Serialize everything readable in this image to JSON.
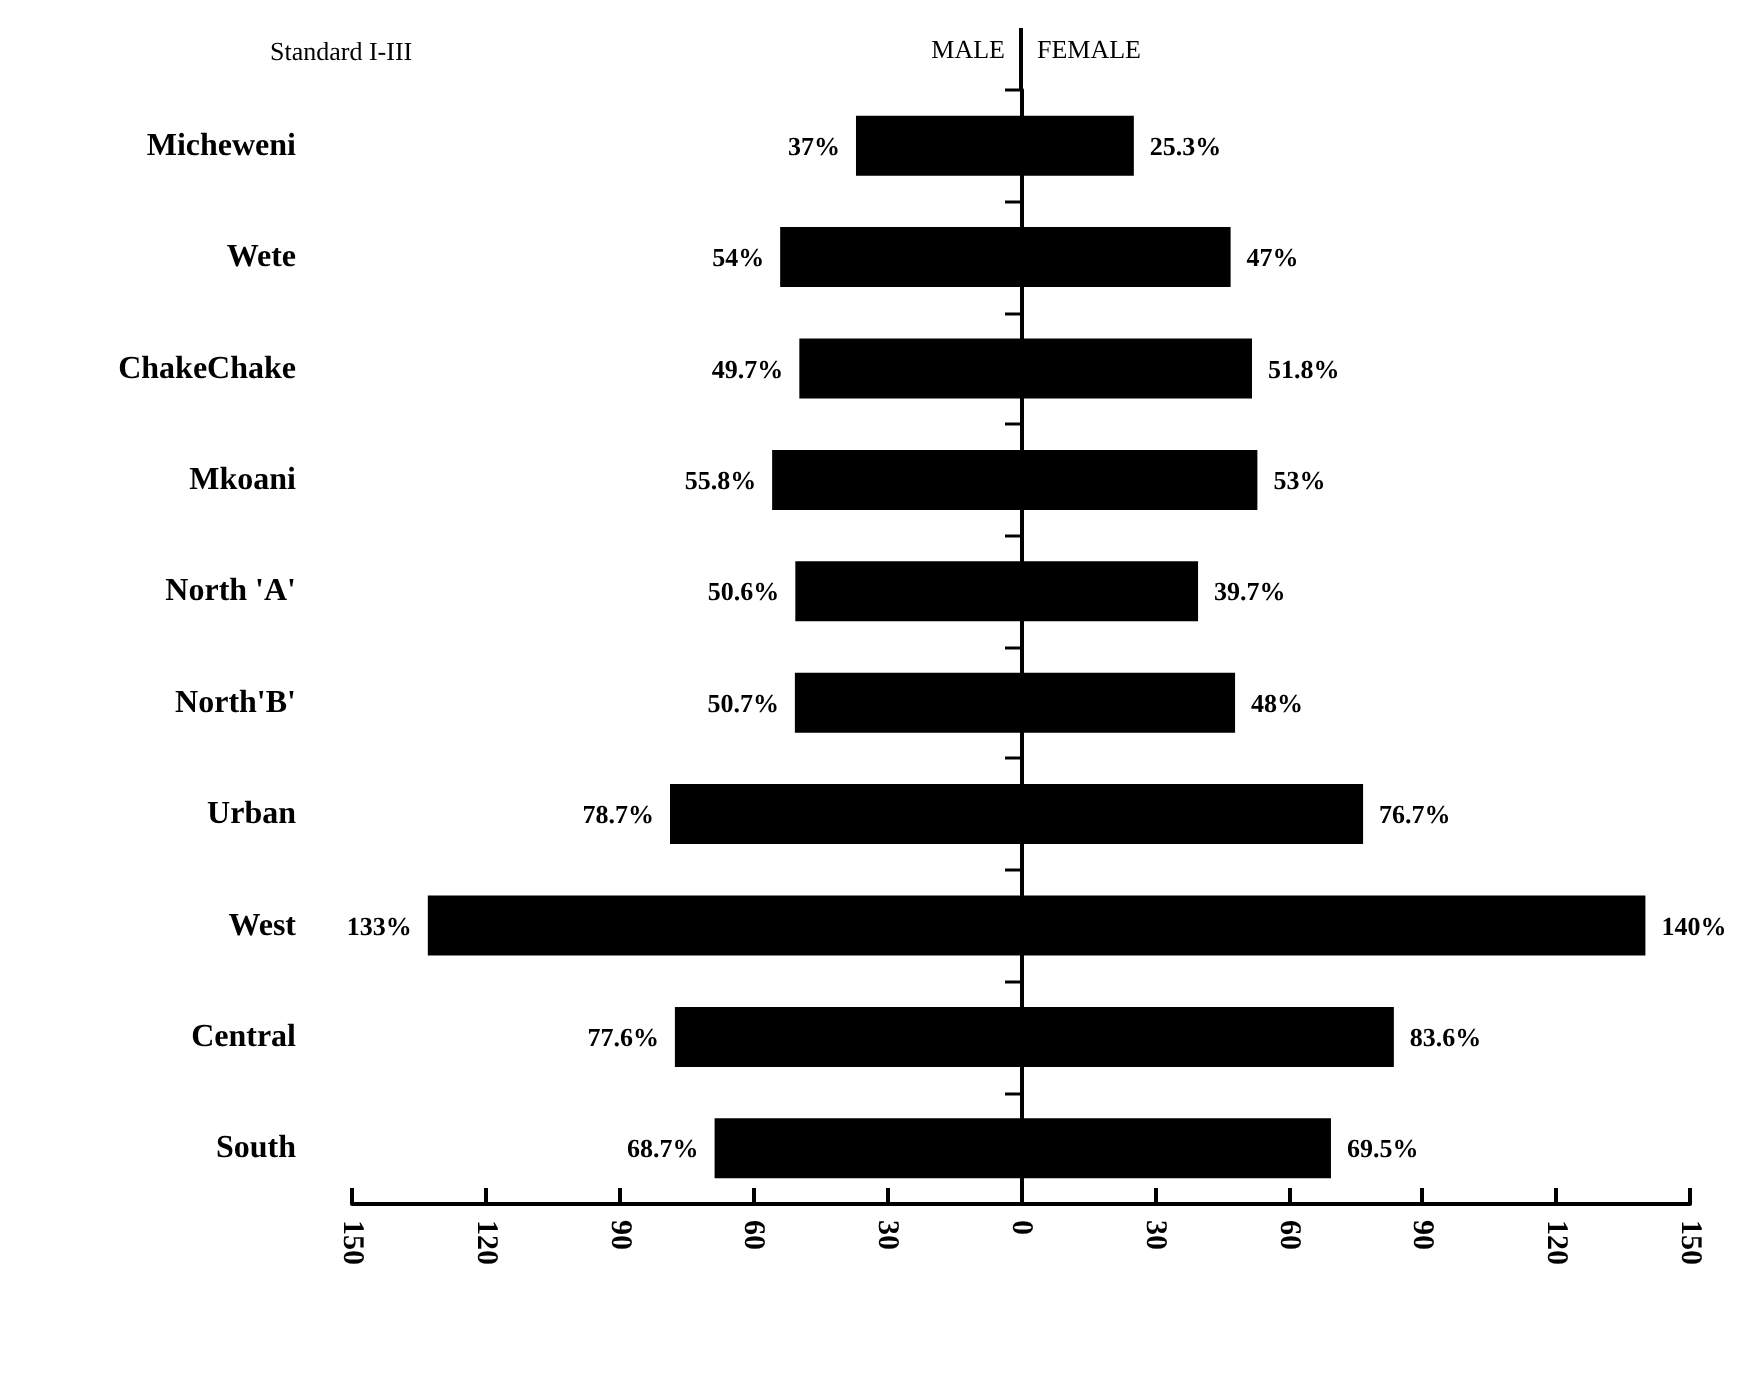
{
  "chart_data": {
    "type": "bar",
    "orientation": "horizontal",
    "subtitle": "Standard I-III",
    "categories": [
      "Micheweni",
      "Wete",
      "ChakeChake",
      "Mkoani",
      "North 'A'",
      "North'B'",
      "Urban",
      "West",
      "Central",
      "South"
    ],
    "series": [
      {
        "name": "MALE",
        "color": "#000000",
        "base": [
          -37,
          -54,
          -49.7,
          -55.8,
          -50.6,
          -50.7,
          -78.7,
          -133,
          -77.6,
          -68.7
        ],
        "values": [
          37,
          54,
          49.7,
          55.8,
          50.6,
          50.7,
          78.7,
          133,
          77.6,
          68.7
        ],
        "value_labels": [
          "37%",
          "54%",
          "49.7%",
          "55.8%",
          "50.6%",
          "50.7%",
          "78.7%",
          "133%",
          "77.6%",
          "68.7%"
        ]
      },
      {
        "name": "FEMALE",
        "color": "#000000",
        "values": [
          25.3,
          47,
          51.8,
          53,
          39.7,
          48,
          76.7,
          140,
          83.6,
          69.5
        ],
        "value_labels": [
          "25.3%",
          "47%",
          "51.8%",
          "53%",
          "39.7%",
          "48%",
          "76.7%",
          "140%",
          "83.6%",
          "69.5%"
        ]
      }
    ],
    "xlim": [
      -150,
      150
    ],
    "xticks": [
      {
        "value": -150,
        "label": "150"
      },
      {
        "value": -120,
        "label": "120"
      },
      {
        "value": -90,
        "label": "90"
      },
      {
        "value": -60,
        "label": "60"
      },
      {
        "value": -30,
        "label": "30"
      },
      0,
      30,
      60,
      90,
      120,
      150
    ],
    "legend": "top"
  }
}
